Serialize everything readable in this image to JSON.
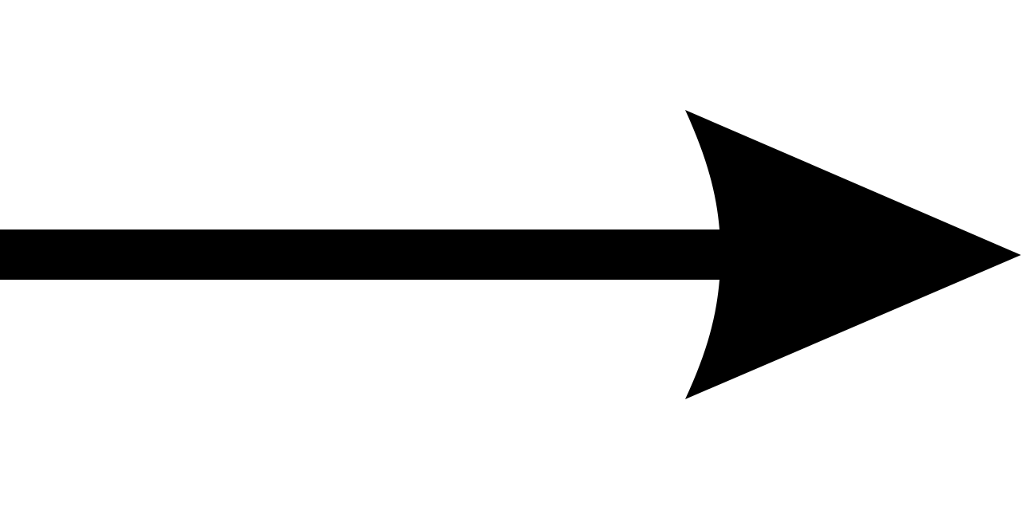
{
  "graphic": {
    "icon": "right-arrow-icon",
    "fill_color": "#000000",
    "background_color": "#ffffff"
  }
}
